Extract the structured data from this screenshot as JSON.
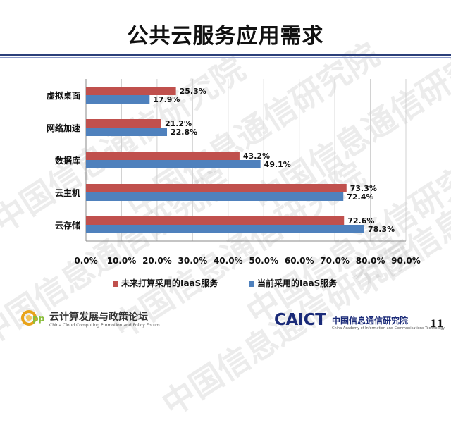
{
  "slide": {
    "title": "公共云服务应用需求",
    "watermark_text": "中国信息通信研究院",
    "page_number": "11",
    "footer_left_cn": "云计算发展与政策论坛",
    "footer_left_en": "China Cloud Computing Promotion and Policy Forum",
    "footer_right_brand": "CAICT",
    "footer_right_cn": "中国信息通信研究院",
    "footer_right_en": "China Academy of Information and Communications Technology"
  },
  "chart_data": {
    "type": "bar",
    "orientation": "horizontal",
    "categories": [
      "虚拟桌面",
      "网络加速",
      "数据库",
      "云主机",
      "云存储"
    ],
    "series": [
      {
        "name": "未来打算采用的IaaS服务",
        "color": "#c0504d",
        "values": [
          25.3,
          21.2,
          43.2,
          73.3,
          72.6
        ]
      },
      {
        "name": "当前采用的IaaS服务",
        "color": "#4f81bd",
        "values": [
          17.9,
          22.8,
          49.1,
          72.4,
          78.3
        ]
      }
    ],
    "xlim": [
      0,
      90
    ],
    "x_ticks": [
      "0.0%",
      "10.0%",
      "20.0%",
      "30.0%",
      "40.0%",
      "50.0%",
      "60.0%",
      "70.0%",
      "80.0%",
      "90.0%"
    ],
    "grid": true,
    "legend_position": "bottom"
  }
}
